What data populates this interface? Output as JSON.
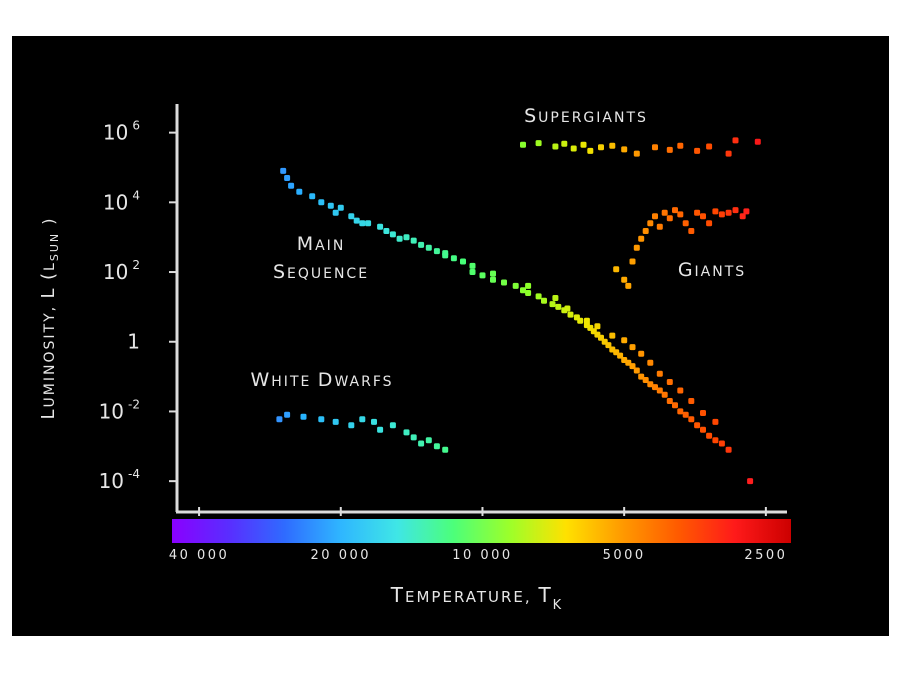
{
  "chart_data": {
    "type": "scatter",
    "xlabel": "Temperature, T",
    "xlabel_subscript": "K",
    "ylabel": "Luminosity, L (L",
    "ylabel_subscript": "sun",
    "ylabel_close": ")",
    "x_scale": "log (reversed)",
    "y_scale": "log",
    "xlim": [
      45000,
      2200
    ],
    "ylim": [
      1e-05,
      3000000
    ],
    "y_ticks": [
      {
        "value": 1000000,
        "base": "10",
        "exp": "6"
      },
      {
        "value": 10000,
        "base": "10",
        "exp": "4"
      },
      {
        "value": 100,
        "base": "10",
        "exp": "2"
      },
      {
        "value": 1,
        "base": "1",
        "exp": ""
      },
      {
        "value": 0.01,
        "base": "10",
        "exp": "-2"
      },
      {
        "value": 0.0001,
        "base": "10",
        "exp": "-4"
      }
    ],
    "x_ticks": [
      {
        "value": 40000,
        "label": "40 000"
      },
      {
        "value": 20000,
        "label": "20 000"
      },
      {
        "value": 10000,
        "label": "10 000"
      },
      {
        "value": 5000,
        "label": "5000"
      },
      {
        "value": 2500,
        "label": "2500"
      }
    ],
    "color_bar": [
      "#8a00ff",
      "#5a2dff",
      "#2f6bff",
      "#2fb6ff",
      "#3fe6e6",
      "#4cff7a",
      "#9cff2a",
      "#ffe100",
      "#ff9a00",
      "#ff5a00",
      "#ff1a1a",
      "#cc0000"
    ],
    "annotations": [
      {
        "text": "Supergiants",
        "group": "supergiants"
      },
      {
        "text": "Main",
        "group": "main"
      },
      {
        "text": "Sequence",
        "group": "main"
      },
      {
        "text": "Giants",
        "group": "giants"
      },
      {
        "text": "White Dwarfs",
        "group": "white_dwarfs"
      }
    ],
    "series": [
      {
        "group": "main_sequence",
        "points": [
          [
            26500,
            80000
          ],
          [
            26000,
            50000
          ],
          [
            25500,
            30000
          ],
          [
            24500,
            20000
          ],
          [
            23000,
            15000
          ],
          [
            22000,
            10000
          ],
          [
            21000,
            8000
          ],
          [
            20000,
            7000
          ],
          [
            20500,
            5000
          ],
          [
            19000,
            4000
          ],
          [
            18500,
            3000
          ],
          [
            17500,
            2500
          ],
          [
            16500,
            2000
          ],
          [
            16000,
            1500
          ],
          [
            15500,
            1200
          ],
          [
            14500,
            1000
          ],
          [
            14000,
            800
          ],
          [
            13500,
            600
          ],
          [
            13000,
            500
          ],
          [
            12500,
            400
          ],
          [
            12000,
            300
          ],
          [
            11500,
            250
          ],
          [
            11000,
            200
          ],
          [
            10500,
            150
          ],
          [
            10500,
            100
          ],
          [
            10000,
            80
          ],
          [
            9500,
            60
          ],
          [
            9000,
            50
          ],
          [
            8500,
            40
          ],
          [
            8200,
            30
          ],
          [
            8000,
            25
          ],
          [
            7600,
            20
          ],
          [
            7400,
            15
          ],
          [
            7100,
            12
          ],
          [
            6900,
            10
          ],
          [
            6700,
            8
          ],
          [
            6500,
            6
          ],
          [
            6300,
            5
          ],
          [
            6200,
            4
          ],
          [
            6000,
            3
          ],
          [
            5900,
            2.5
          ],
          [
            5800,
            2
          ],
          [
            5700,
            1.6
          ],
          [
            5600,
            1.3
          ],
          [
            5500,
            1
          ],
          [
            5400,
            0.8
          ],
          [
            5300,
            0.6
          ],
          [
            5200,
            0.5
          ],
          [
            5100,
            0.4
          ],
          [
            5000,
            0.3
          ],
          [
            4900,
            0.25
          ],
          [
            4800,
            0.2
          ],
          [
            4700,
            0.15
          ],
          [
            4600,
            0.1
          ],
          [
            4500,
            0.08
          ],
          [
            4400,
            0.06
          ],
          [
            4300,
            0.05
          ],
          [
            4200,
            0.04
          ],
          [
            4100,
            0.03
          ],
          [
            4000,
            0.02
          ],
          [
            3900,
            0.015
          ],
          [
            3800,
            0.01
          ],
          [
            3700,
            0.008
          ],
          [
            3600,
            0.006
          ],
          [
            3500,
            0.004
          ],
          [
            3400,
            0.003
          ],
          [
            3300,
            0.002
          ],
          [
            3200,
            0.0015
          ],
          [
            3100,
            0.0012
          ],
          [
            3000,
            0.0008
          ],
          [
            2700,
            0.0001
          ],
          [
            18000,
            2500
          ],
          [
            15000,
            900
          ],
          [
            12000,
            350
          ],
          [
            9500,
            90
          ],
          [
            8000,
            40
          ],
          [
            7000,
            18
          ],
          [
            6600,
            9
          ],
          [
            6000,
            4
          ],
          [
            5700,
            2.8
          ],
          [
            5300,
            1.5
          ],
          [
            5000,
            1.1
          ],
          [
            4800,
            0.7
          ],
          [
            4600,
            0.45
          ],
          [
            4400,
            0.25
          ],
          [
            4200,
            0.12
          ],
          [
            4000,
            0.07
          ],
          [
            3800,
            0.04
          ],
          [
            3600,
            0.02
          ],
          [
            3400,
            0.009
          ],
          [
            3200,
            0.005
          ]
        ]
      },
      {
        "group": "giants",
        "points": [
          [
            5200,
            120
          ],
          [
            5000,
            60
          ],
          [
            4900,
            40
          ],
          [
            4800,
            200
          ],
          [
            4700,
            500
          ],
          [
            4600,
            900
          ],
          [
            4500,
            1500
          ],
          [
            4400,
            2500
          ],
          [
            4300,
            4000
          ],
          [
            4200,
            2000
          ],
          [
            4100,
            5000
          ],
          [
            4000,
            3500
          ],
          [
            3900,
            6000
          ],
          [
            3800,
            4500
          ],
          [
            3700,
            2500
          ],
          [
            3600,
            1500
          ],
          [
            3500,
            5000
          ],
          [
            3400,
            4000
          ],
          [
            3300,
            2500
          ],
          [
            3200,
            5500
          ],
          [
            3100,
            4500
          ],
          [
            3000,
            5000
          ],
          [
            2900,
            6000
          ],
          [
            2800,
            4000
          ],
          [
            2750,
            5500
          ]
        ]
      },
      {
        "group": "supergiants",
        "points": [
          [
            8200,
            450000
          ],
          [
            7600,
            500000
          ],
          [
            7000,
            400000
          ],
          [
            6700,
            480000
          ],
          [
            6400,
            350000
          ],
          [
            6100,
            450000
          ],
          [
            5900,
            300000
          ],
          [
            5600,
            380000
          ],
          [
            5300,
            420000
          ],
          [
            5000,
            330000
          ],
          [
            4700,
            250000
          ],
          [
            4300,
            380000
          ],
          [
            4000,
            320000
          ],
          [
            3800,
            420000
          ],
          [
            3500,
            300000
          ],
          [
            3300,
            400000
          ],
          [
            3000,
            250000
          ],
          [
            2900,
            600000
          ],
          [
            2600,
            550000
          ]
        ]
      },
      {
        "group": "white_dwarfs",
        "points": [
          [
            27000,
            0.006
          ],
          [
            26000,
            0.008
          ],
          [
            24000,
            0.007
          ],
          [
            22000,
            0.006
          ],
          [
            20500,
            0.005
          ],
          [
            19000,
            0.004
          ],
          [
            18000,
            0.006
          ],
          [
            17000,
            0.005
          ],
          [
            16500,
            0.003
          ],
          [
            15500,
            0.004
          ],
          [
            14500,
            0.0025
          ],
          [
            14000,
            0.0018
          ],
          [
            13500,
            0.0012
          ],
          [
            13000,
            0.0015
          ],
          [
            12500,
            0.001
          ],
          [
            12000,
            0.0008
          ]
        ]
      }
    ]
  }
}
